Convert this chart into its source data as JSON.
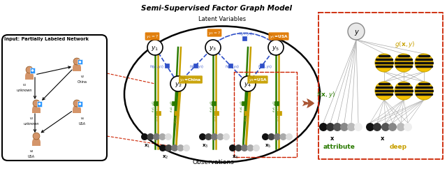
{
  "title": "Semi-Supervised Factor Graph Model",
  "bg_color": "#ffffff",
  "left_box_label": "Input: Partially Labeled Network",
  "right_box_label_attr": "attribute",
  "right_box_label_deep": "deep",
  "center_top_label": "Latent Variables",
  "center_bottom_label": "Observations",
  "yellow_color": "#C8A000",
  "green_color": "#2A7A00",
  "blue_color": "#3050C8",
  "orange_color": "#E07800",
  "red_color": "#CC2200",
  "brown_arrow": "#996644",
  "y1_label": "y₁=?",
  "y3_label": "y₃=?",
  "y5_label": "y₅=USA",
  "y2_label": "y₂=China",
  "y4_label": "y₄=USA"
}
